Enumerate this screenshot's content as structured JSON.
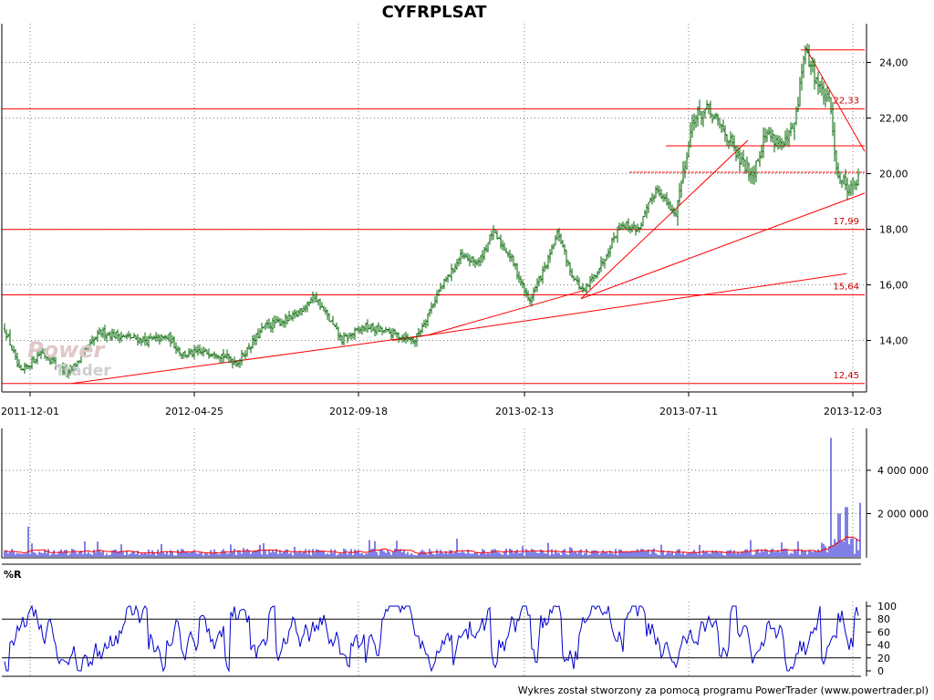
{
  "title": "CYFRPLSAT",
  "credit": "Wykres został stworzony za pomocą programu PowerTrader (www.powertrader.pl)",
  "watermark": {
    "line1": "Power",
    "line2": "Trader"
  },
  "colors": {
    "candle": "#006400",
    "trend": "#ff0000",
    "volume": "#0000cc",
    "volume_avg": "#ff0000",
    "osc": "#0000cc",
    "grid": "#808080"
  },
  "chart_data": [
    {
      "type": "candlestick",
      "title": "CYFRPLSAT",
      "x_ticks": [
        "2011-12-01",
        "2012-04-25",
        "2012-09-18",
        "2013-02-13",
        "2013-07-11",
        "2013-12-03"
      ],
      "y_ticks": [
        "14,00",
        "16,00",
        "18,00",
        "20,00",
        "22,00",
        "24,00"
      ],
      "ylim": [
        12.3,
        24.9
      ],
      "grid": true,
      "price_path_approx": [
        [
          0,
          14.8
        ],
        [
          10,
          14.0
        ],
        [
          22,
          12.8
        ],
        [
          45,
          13.6
        ],
        [
          75,
          12.8
        ],
        [
          110,
          14.3
        ],
        [
          160,
          14.0
        ],
        [
          185,
          14.1
        ],
        [
          200,
          13.5
        ],
        [
          235,
          13.6
        ],
        [
          260,
          13.2
        ],
        [
          290,
          14.5
        ],
        [
          320,
          14.8
        ],
        [
          345,
          15.6
        ],
        [
          375,
          14.0
        ],
        [
          400,
          14.5
        ],
        [
          425,
          14.3
        ],
        [
          455,
          14.0
        ],
        [
          480,
          15.7
        ],
        [
          505,
          17.0
        ],
        [
          525,
          16.8
        ],
        [
          540,
          17.9
        ],
        [
          560,
          17.0
        ],
        [
          580,
          15.4
        ],
        [
          600,
          16.8
        ],
        [
          612,
          17.9
        ],
        [
          625,
          16.5
        ],
        [
          640,
          15.7
        ],
        [
          660,
          16.8
        ],
        [
          680,
          18.2
        ],
        [
          700,
          18.0
        ],
        [
          720,
          19.5
        ],
        [
          740,
          18.5
        ],
        [
          760,
          22.0
        ],
        [
          775,
          22.3
        ],
        [
          795,
          21.5
        ],
        [
          810,
          20.5
        ],
        [
          825,
          20.0
        ],
        [
          840,
          21.5
        ],
        [
          860,
          21.0
        ],
        [
          872,
          21.8
        ],
        [
          882,
          24.5
        ],
        [
          890,
          23.8
        ],
        [
          900,
          23.0
        ],
        [
          910,
          22.5
        ],
        [
          918,
          20.0
        ],
        [
          930,
          19.5
        ],
        [
          942,
          19.8
        ]
      ],
      "horizontal_levels": [
        {
          "value": 24.45,
          "label": ""
        },
        {
          "value": 22.33,
          "label": "22,33"
        },
        {
          "value": 21.0,
          "label": ""
        },
        {
          "value": 20.05,
          "label": ""
        },
        {
          "value": 17.99,
          "label": "17,99"
        },
        {
          "value": 15.64,
          "label": "15,64"
        },
        {
          "value": 12.45,
          "label": "12,45"
        }
      ],
      "trendlines": [
        {
          "x1": 78,
          "y1": 12.45,
          "x2": 470,
          "y2": 14.2
        },
        {
          "x1": 430,
          "y1": 14.0,
          "x2": 928,
          "y2": 16.4
        },
        {
          "x1": 470,
          "y1": 14.2,
          "x2": 640,
          "y2": 15.8
        },
        {
          "x1": 637,
          "y1": 15.5,
          "x2": 948,
          "y2": 19.3
        },
        {
          "x1": 637,
          "y1": 15.5,
          "x2": 820,
          "y2": 21.2
        },
        {
          "x1": 882,
          "y1": 24.6,
          "x2": 948,
          "y2": 20.8
        }
      ]
    },
    {
      "type": "bar",
      "title": "",
      "y_ticks": [
        "2 000 000",
        "4 000 000"
      ],
      "ylim": [
        0,
        5600000
      ],
      "grid": true,
      "typical_volume": 250000,
      "spikes": [
        {
          "x": 31,
          "v": 1400000
        },
        {
          "x": 911,
          "v": 5500000
        },
        {
          "x": 920,
          "v": 2000000
        },
        {
          "x": 928,
          "v": 2300000
        },
        {
          "x": 943,
          "v": 2500000
        }
      ]
    },
    {
      "type": "line",
      "title": "%R",
      "y_ticks": [
        "0",
        "20",
        "40",
        "60",
        "80",
        "100"
      ],
      "ylim": [
        0,
        100
      ],
      "reference_levels": [
        20,
        80
      ],
      "grid": true
    }
  ]
}
